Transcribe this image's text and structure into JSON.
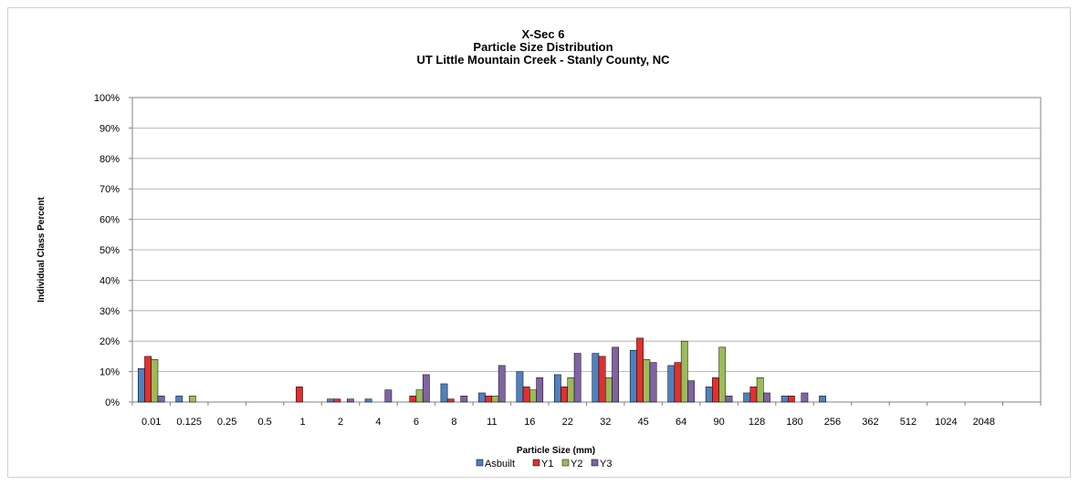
{
  "chart_data": {
    "type": "bar",
    "title_lines": [
      "X-Sec 6",
      "Particle Size Distribution",
      "UT Little Mountain Creek - Stanly County, NC"
    ],
    "xlabel": "Particle Size (mm)",
    "ylabel": "Individual Class Percent",
    "ylim": [
      0,
      100
    ],
    "yticks": [
      "0%",
      "10%",
      "20%",
      "30%",
      "40%",
      "50%",
      "60%",
      "70%",
      "80%",
      "90%",
      "100%"
    ],
    "categories": [
      "0.01",
      "0.125",
      "0.25",
      "0.5",
      "1",
      "2",
      "4",
      "6",
      "8",
      "11",
      "16",
      "22",
      "32",
      "45",
      "64",
      "90",
      "128",
      "180",
      "256",
      "362",
      "512",
      "1024",
      "2048",
      ""
    ],
    "grid": true,
    "legend_position": "bottom",
    "series": [
      {
        "name": "Asbuilt",
        "color": "#4f81bd",
        "values": [
          11,
          2,
          0,
          0,
          0,
          1,
          1,
          0,
          6,
          3,
          10,
          9,
          16,
          17,
          12,
          5,
          3,
          2,
          2,
          0,
          0,
          0,
          0,
          0
        ]
      },
      {
        "name": "Y1",
        "color": "#e03030",
        "values": [
          15,
          0,
          0,
          0,
          5,
          1,
          0,
          2,
          1,
          2,
          5,
          5,
          15,
          21,
          13,
          8,
          5,
          2,
          0,
          0,
          0,
          0,
          0,
          0
        ]
      },
      {
        "name": "Y2",
        "color": "#9bbb59",
        "values": [
          14,
          2,
          0,
          0,
          0,
          0,
          0,
          4,
          0,
          2,
          4,
          8,
          8,
          14,
          20,
          18,
          8,
          0,
          0,
          0,
          0,
          0,
          0,
          0
        ]
      },
      {
        "name": "Y3",
        "color": "#8064a2",
        "values": [
          2,
          0,
          0,
          0,
          0,
          1,
          4,
          9,
          2,
          12,
          8,
          16,
          18,
          13,
          7,
          2,
          3,
          3,
          0,
          0,
          0,
          0,
          0,
          0
        ]
      }
    ]
  }
}
